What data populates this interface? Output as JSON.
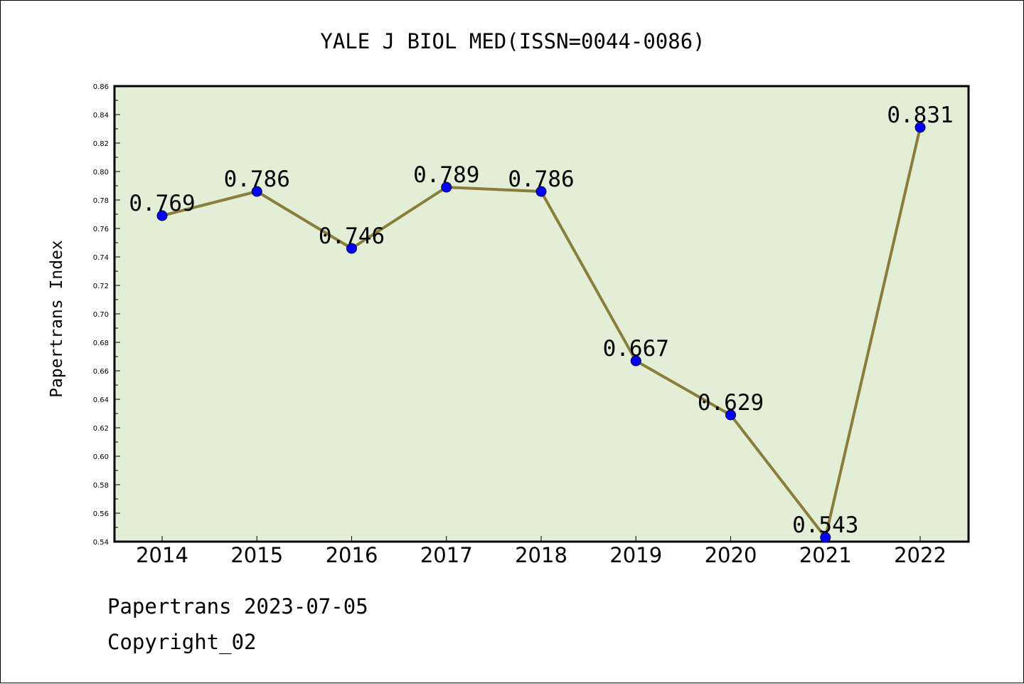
{
  "chart_data": {
    "type": "line",
    "title": "YALE J BIOL MED(ISSN=0044-0086)",
    "ylabel": "Papertrans Index",
    "xlabel": "",
    "categories": [
      "2014",
      "2015",
      "2016",
      "2017",
      "2018",
      "2019",
      "2020",
      "2021",
      "2022"
    ],
    "series": [
      {
        "values": [
          0.769,
          0.786,
          0.746,
          0.789,
          0.786,
          0.667,
          0.629,
          0.543,
          0.831
        ]
      }
    ],
    "data_labels": [
      "0.769",
      "0.786",
      "0.746",
      "0.789",
      "0.786",
      "0.667",
      "0.629",
      "0.543",
      "0.831"
    ],
    "ylim": [
      0.54,
      0.86
    ],
    "y_ticks": [
      "0.54",
      "0.56",
      "0.58",
      "0.60",
      "0.62",
      "0.64",
      "0.66",
      "0.68",
      "0.70",
      "0.72",
      "0.74",
      "0.76",
      "0.78",
      "0.80",
      "0.82",
      "0.84",
      "0.86"
    ],
    "grid": false,
    "legend": "none",
    "colors": {
      "plot_background": "#e2efd6",
      "line": "#8b7d3a",
      "marker": "#0000ff"
    }
  },
  "footer": {
    "line1": "Papertrans 2023-07-05",
    "line2": "Copyright_02"
  }
}
